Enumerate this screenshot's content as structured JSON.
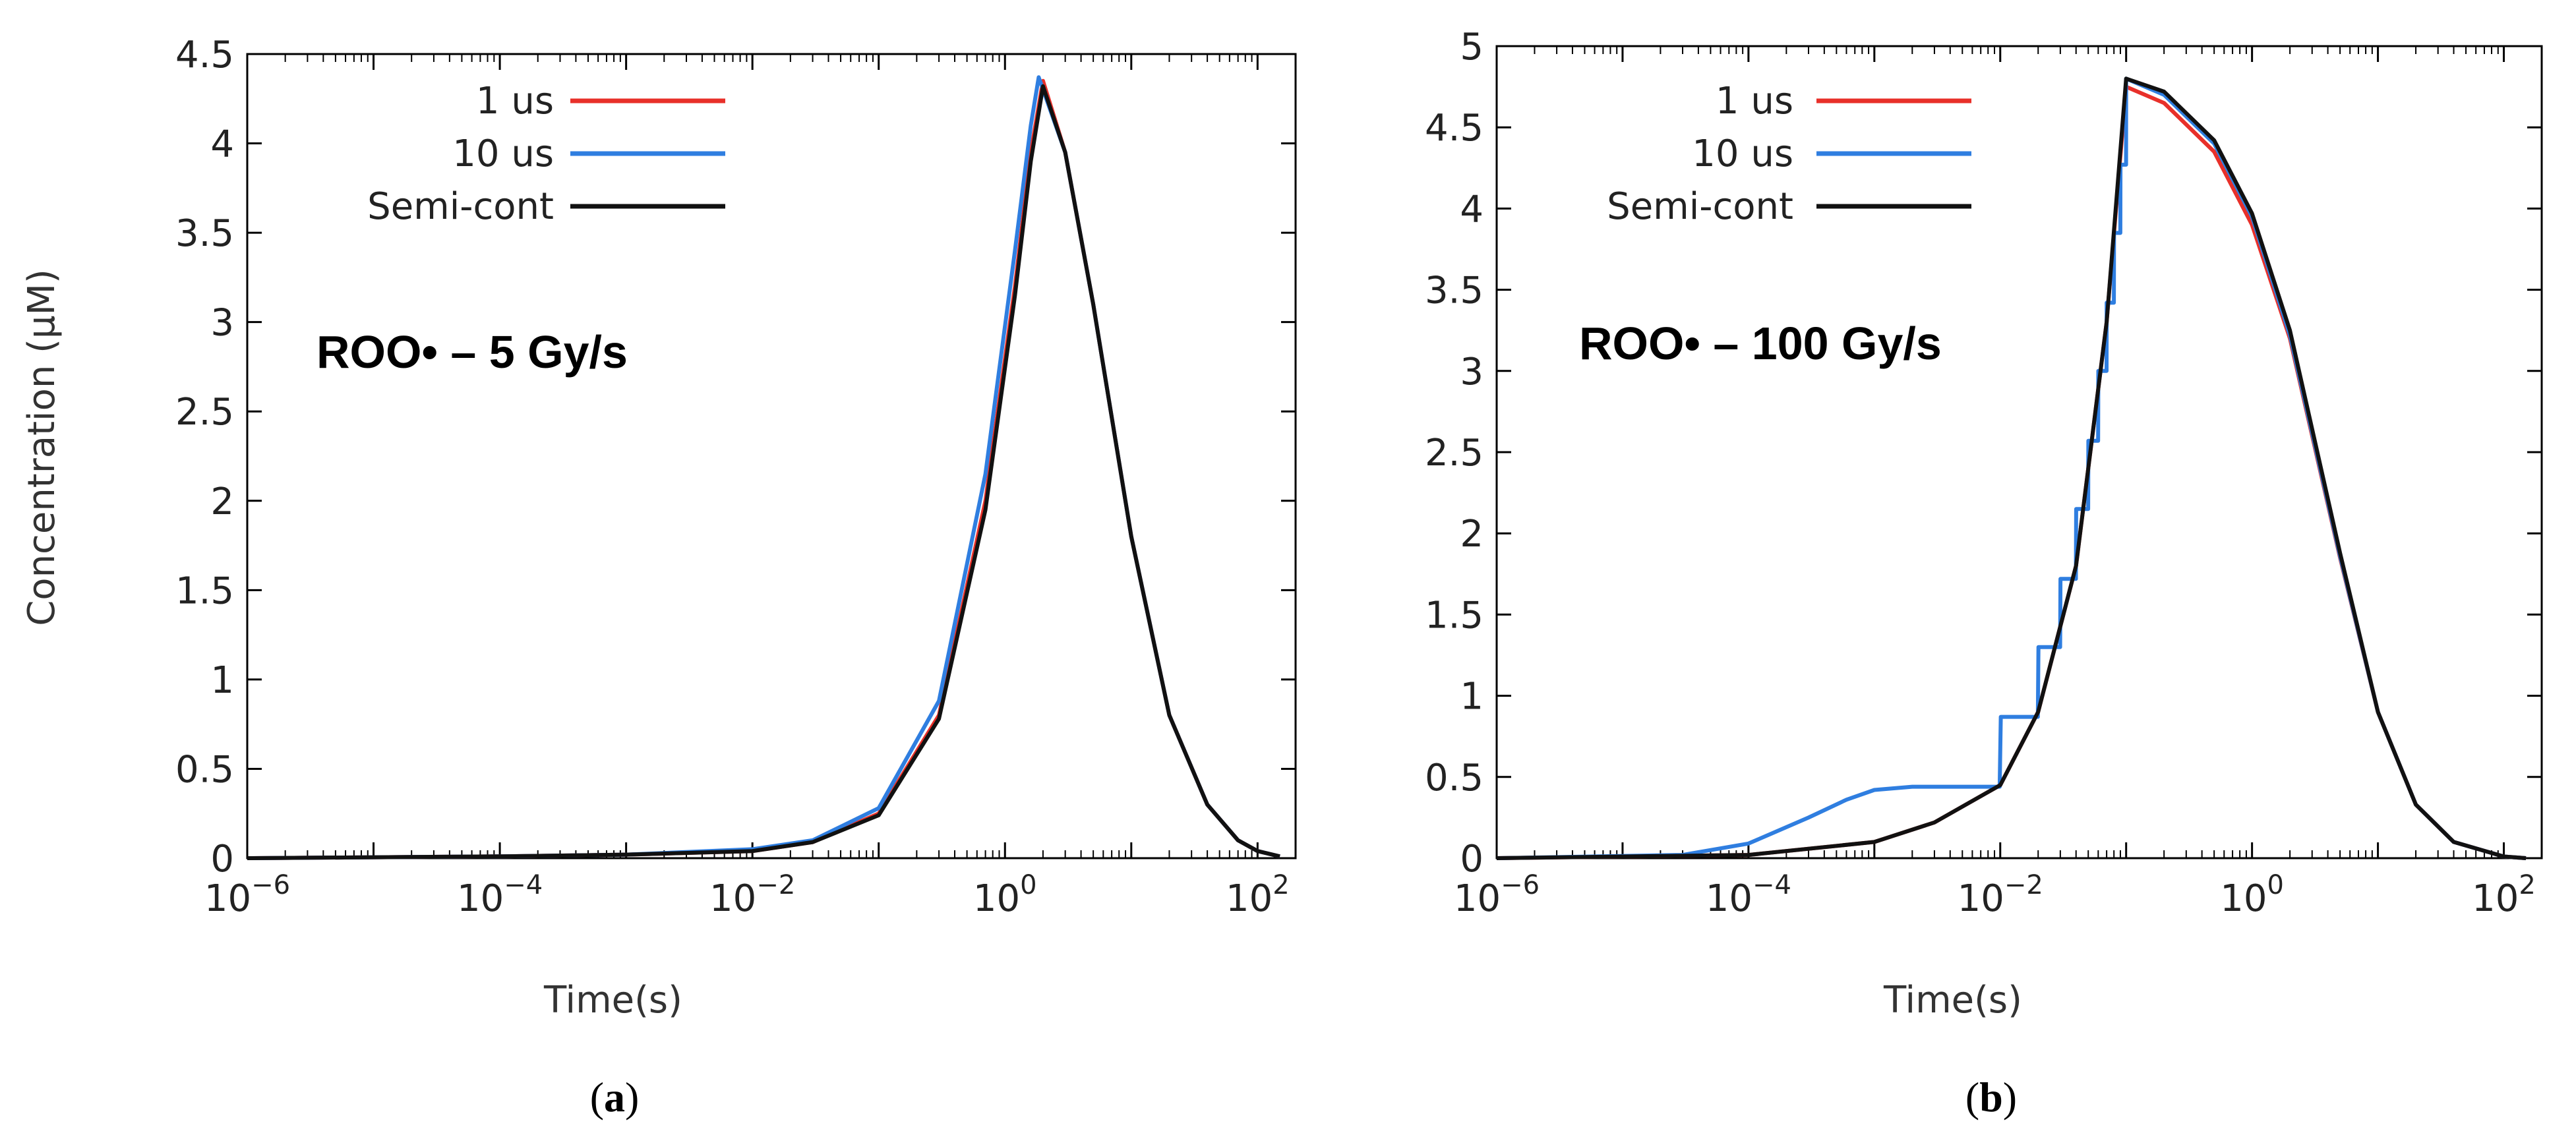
{
  "chart_data": [
    {
      "type": "line",
      "panel": "(a)",
      "panel_letter": "a",
      "xscale": "log",
      "xlim": [
        1e-06,
        200
      ],
      "ylim": [
        0,
        4.5
      ],
      "xlabel": "Time(s)",
      "ylabel": "Concentration (μM)",
      "annotation": "ROO• – 5 Gy/s",
      "xticks": [
        {
          "value": 1e-06,
          "base": "10",
          "exp": "−6"
        },
        {
          "value": 0.0001,
          "base": "10",
          "exp": "−4"
        },
        {
          "value": 0.01,
          "base": "10",
          "exp": "−2"
        },
        {
          "value": 1,
          "base": "10",
          "exp": "0"
        },
        {
          "value": 100,
          "base": "10",
          "exp": "2"
        }
      ],
      "yticks": [
        "0",
        "0.5",
        "1",
        "1.5",
        "2",
        "2.5",
        "3",
        "3.5",
        "4",
        "4.5"
      ],
      "series": [
        {
          "name": "1 us",
          "color": "#e8302a",
          "x": [
            1e-06,
            0.0001,
            0.001,
            0.01,
            0.03,
            0.1,
            0.3,
            0.7,
            1.2,
            1.6,
            2.0,
            3.0,
            5.0,
            10,
            20,
            40,
            70,
            100,
            150
          ],
          "y": [
            0,
            0.01,
            0.02,
            0.04,
            0.09,
            0.25,
            0.8,
            2.0,
            3.2,
            3.95,
            4.35,
            3.95,
            3.1,
            1.8,
            0.8,
            0.3,
            0.1,
            0.04,
            0.01
          ]
        },
        {
          "name": "10 us",
          "color": "#2f7ee0",
          "x": [
            1e-06,
            0.0001,
            0.001,
            0.01,
            0.03,
            0.1,
            0.3,
            0.7,
            1.2,
            1.6,
            1.85,
            3.0,
            5.0,
            10,
            20,
            40,
            70,
            100,
            150
          ],
          "y": [
            0,
            0.01,
            0.02,
            0.05,
            0.1,
            0.28,
            0.88,
            2.15,
            3.4,
            4.1,
            4.37,
            3.95,
            3.1,
            1.8,
            0.8,
            0.3,
            0.1,
            0.04,
            0.01
          ]
        },
        {
          "name": "Semi-cont",
          "color": "#111111",
          "x": [
            1e-06,
            0.0001,
            0.001,
            0.01,
            0.03,
            0.1,
            0.3,
            0.7,
            1.2,
            1.6,
            2.0,
            3.0,
            5.0,
            10,
            20,
            40,
            70,
            100,
            150
          ],
          "y": [
            0,
            0.01,
            0.02,
            0.04,
            0.09,
            0.24,
            0.78,
            1.95,
            3.15,
            3.9,
            4.32,
            3.95,
            3.1,
            1.8,
            0.8,
            0.3,
            0.1,
            0.04,
            0.01
          ]
        }
      ]
    },
    {
      "type": "line",
      "panel": "(b)",
      "panel_letter": "b",
      "xscale": "log",
      "xlim": [
        1e-06,
        200
      ],
      "ylim": [
        0,
        5
      ],
      "xlabel": "Time(s)",
      "ylabel": "",
      "annotation": "ROO• – 100 Gy/s",
      "xticks": [
        {
          "value": 1e-06,
          "base": "10",
          "exp": "−6"
        },
        {
          "value": 0.0001,
          "base": "10",
          "exp": "−4"
        },
        {
          "value": 0.01,
          "base": "10",
          "exp": "−2"
        },
        {
          "value": 1,
          "base": "10",
          "exp": "0"
        },
        {
          "value": 100,
          "base": "10",
          "exp": "2"
        }
      ],
      "yticks": [
        "0",
        "0.5",
        "1",
        "1.5",
        "2",
        "2.5",
        "3",
        "3.5",
        "4",
        "4.5",
        "5"
      ],
      "series": [
        {
          "name": "1 us",
          "color": "#e8302a",
          "x": [
            1e-06,
            0.0001,
            0.001,
            0.003,
            0.01,
            0.02,
            0.04,
            0.07,
            0.1,
            0.2,
            0.5,
            1,
            2,
            5,
            10,
            20,
            40,
            100,
            150
          ],
          "y": [
            0,
            0.02,
            0.1,
            0.22,
            0.45,
            0.9,
            1.8,
            3.3,
            4.75,
            4.65,
            4.35,
            3.9,
            3.2,
            1.85,
            0.9,
            0.33,
            0.1,
            0.01,
            0.0
          ]
        },
        {
          "name": "10 us",
          "color": "#2f7ee0",
          "x": [
            1e-06,
            3e-05,
            0.0001,
            0.0003,
            0.0006,
            0.001,
            0.002,
            0.005,
            0.0099,
            0.0101,
            0.0199,
            0.0201,
            0.0299,
            0.0301,
            0.0399,
            0.0401,
            0.0499,
            0.0501,
            0.0599,
            0.0601,
            0.0699,
            0.0701,
            0.0799,
            0.0801,
            0.0899,
            0.0901,
            0.0999,
            0.1,
            0.2,
            0.5,
            1,
            2,
            5,
            10,
            20,
            40,
            100,
            150
          ],
          "y": [
            0,
            0.02,
            0.09,
            0.25,
            0.36,
            0.42,
            0.44,
            0.44,
            0.44,
            0.87,
            0.87,
            1.3,
            1.3,
            1.72,
            1.72,
            2.15,
            2.15,
            2.57,
            2.57,
            3.0,
            3.0,
            3.42,
            3.42,
            3.85,
            3.85,
            4.27,
            4.27,
            4.8,
            4.7,
            4.4,
            3.95,
            3.22,
            1.86,
            0.9,
            0.33,
            0.1,
            0.01,
            0.0
          ]
        },
        {
          "name": "Semi-cont",
          "color": "#111111",
          "x": [
            1e-06,
            0.0001,
            0.001,
            0.003,
            0.01,
            0.02,
            0.04,
            0.07,
            0.1,
            0.2,
            0.5,
            1,
            2,
            5,
            10,
            20,
            40,
            100,
            150
          ],
          "y": [
            0,
            0.02,
            0.1,
            0.22,
            0.45,
            0.9,
            1.8,
            3.3,
            4.8,
            4.72,
            4.42,
            3.97,
            3.25,
            1.88,
            0.9,
            0.33,
            0.1,
            0.01,
            0.0
          ]
        }
      ]
    }
  ]
}
